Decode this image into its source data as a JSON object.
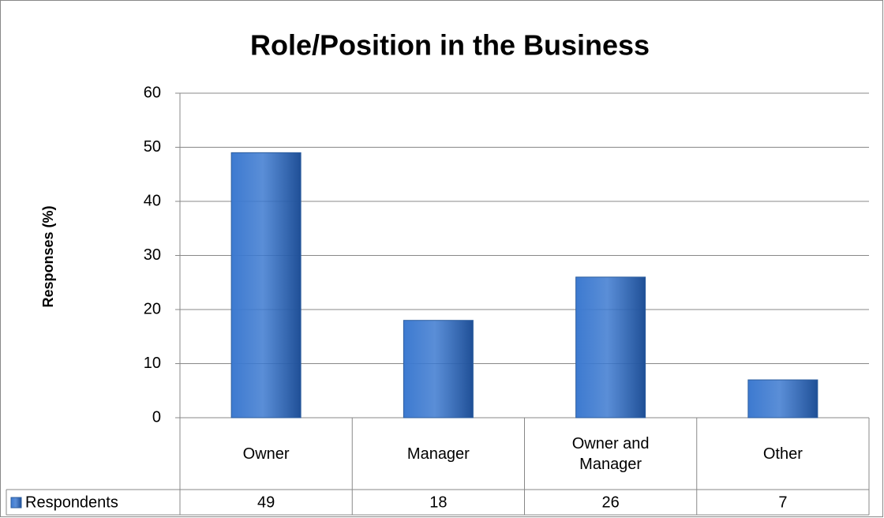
{
  "chart_data": {
    "type": "bar",
    "title": "Role/Position in the Business",
    "y_label": "Responses (%)",
    "categories": [
      "Owner",
      "Manager",
      "Owner and Manager",
      "Other"
    ],
    "series": [
      {
        "name": "Respondents",
        "color": "#3d7ad0",
        "values": [
          49,
          18,
          26,
          7
        ]
      }
    ],
    "ylim": [
      0,
      60
    ],
    "yticks": [
      0,
      10,
      20,
      30,
      40,
      50,
      60
    ],
    "grid": true,
    "data_table": true
  }
}
